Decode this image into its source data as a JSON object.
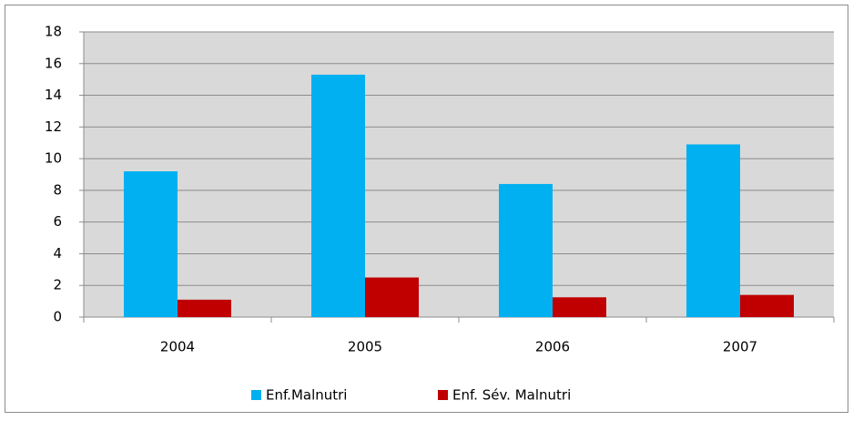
{
  "chart_data": {
    "type": "bar",
    "categories": [
      "2004",
      "2005",
      "2006",
      "2007"
    ],
    "series": [
      {
        "name": "Enf.Malnutri",
        "color": "#00b0f0",
        "values": [
          9.2,
          15.3,
          8.4,
          10.9
        ]
      },
      {
        "name": "Enf. Sév. Malnutri",
        "color": "#c00000",
        "values": [
          1.1,
          2.5,
          1.25,
          1.4
        ]
      }
    ],
    "ylim": [
      0,
      18
    ],
    "yticks": [
      0,
      2,
      4,
      6,
      8,
      10,
      12,
      14,
      16,
      18
    ],
    "grid": true,
    "legend": "bottom"
  }
}
